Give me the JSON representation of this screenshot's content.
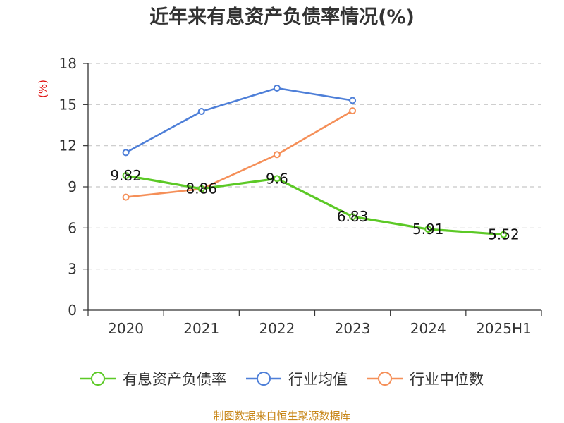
{
  "title": "近年来有息资产负债率情况(%)",
  "source": "制图数据来自恒生聚源数据库",
  "chart_data": {
    "type": "line",
    "title": "近年来有息资产负债率情况(%)",
    "ylabel": "(%)",
    "xlabel": "",
    "ylim": [
      0,
      18
    ],
    "yticks": [
      0,
      3,
      6,
      9,
      12,
      15,
      18
    ],
    "categories": [
      "2020",
      "2021",
      "2022",
      "2023",
      "2024",
      "2025H1"
    ],
    "grid": true,
    "legend_position": "bottom",
    "series": [
      {
        "name": "有息资产负债率",
        "color": "#5cc926",
        "values": [
          9.82,
          8.86,
          9.6,
          6.83,
          5.91,
          5.52
        ],
        "labels": [
          "9.82",
          "8.86",
          "9.6",
          "6.83",
          "5.91",
          "5.52"
        ],
        "show_labels": true
      },
      {
        "name": "行业均值",
        "color": "#4e7fd8",
        "values": [
          11.5,
          14.5,
          16.2,
          15.3,
          null,
          null
        ],
        "show_labels": false
      },
      {
        "name": "行业中位数",
        "color": "#f58f58",
        "values": [
          8.25,
          8.85,
          11.35,
          14.55,
          null,
          null
        ],
        "show_labels": false
      }
    ]
  }
}
